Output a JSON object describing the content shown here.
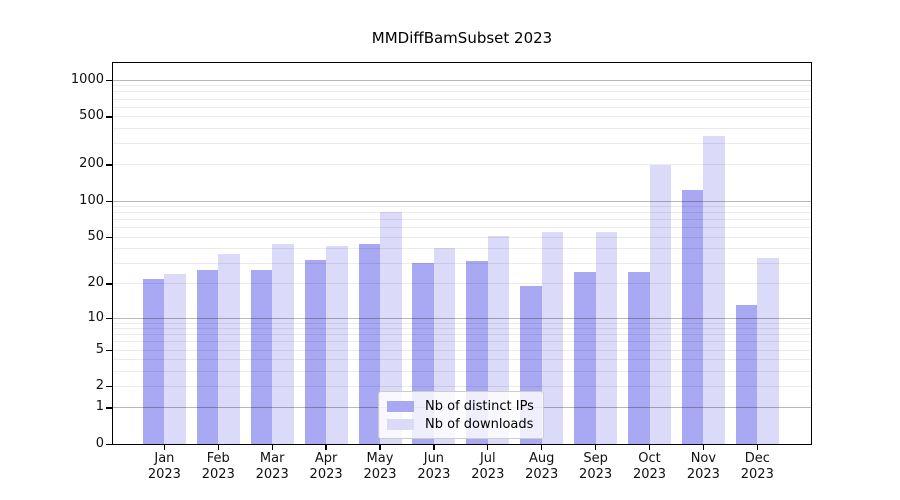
{
  "chart_data": {
    "type": "bar",
    "title": "MMDiffBamSubset 2023",
    "x_categories": [
      "Jan",
      "Feb",
      "Mar",
      "Apr",
      "May",
      "Jun",
      "Jul",
      "Aug",
      "Sep",
      "Oct",
      "Nov",
      "Dec"
    ],
    "x_year_line": "2023",
    "series": [
      {
        "name": "Nb of distinct IPs",
        "color": "#a8a8f3",
        "values": [
          22,
          26,
          26,
          32,
          43,
          30,
          31,
          19,
          25,
          25,
          122,
          13
        ]
      },
      {
        "name": "Nb of downloads",
        "color": "#dbdbf9",
        "values": [
          24,
          36,
          43,
          42,
          80,
          40,
          51,
          55,
          55,
          199,
          345,
          33
        ]
      }
    ],
    "y_axis": {
      "scale": "log1p",
      "ticks": [
        0,
        1,
        2,
        5,
        10,
        20,
        50,
        100,
        200,
        500,
        1000
      ],
      "major_gridlines": [
        1,
        10,
        100,
        1000
      ],
      "minor_gridlines": [
        2,
        3,
        4,
        5,
        6,
        7,
        8,
        9,
        20,
        30,
        40,
        50,
        60,
        70,
        80,
        90,
        200,
        300,
        400,
        500,
        600,
        700,
        800,
        900
      ],
      "max": 1372
    },
    "xlabel": "",
    "ylabel": "",
    "grid": true,
    "legend_position": "lower-center-inside"
  },
  "colors": {
    "bar_distinct_ips": "#a8a8f3",
    "bar_downloads": "#dbdbf9",
    "major_gridline": "rgba(0,0,0,0.28)",
    "minor_gridline": "rgba(0,0,0,0.08)",
    "axis": "#000000",
    "legend_border": "#cccccc",
    "legend_background": "rgba(255,255,255,0.8)"
  }
}
